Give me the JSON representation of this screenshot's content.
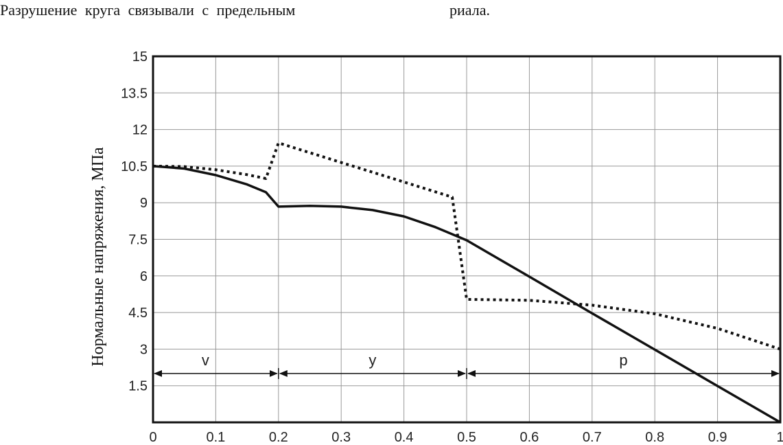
{
  "text": {
    "line1": "Разрушение круга связывали с предельным",
    "line2": "риала."
  },
  "chart_data": {
    "type": "line",
    "title": "",
    "xlabel": "",
    "ylabel": "Нормальные напряжения, МПа",
    "xlim": [
      0,
      1
    ],
    "ylim": [
      0,
      15
    ],
    "grid": true,
    "x_ticks": [
      "0",
      "0.1",
      "0.2",
      "0.3",
      "0.4",
      "0.5",
      "0.6",
      "0.7",
      "0.8",
      "0.9",
      "1"
    ],
    "y_ticks": [
      "1.5",
      "3",
      "4.5",
      "6",
      "7.5",
      "9",
      "10.5",
      "12",
      "13.5",
      "15"
    ],
    "series": [
      {
        "style": "solid",
        "color": "#111111",
        "x": [
          0,
          0.05,
          0.1,
          0.15,
          0.18,
          0.2,
          0.25,
          0.3,
          0.35,
          0.4,
          0.45,
          0.5,
          0.6,
          0.7,
          0.8,
          0.9,
          1.0
        ],
        "y": [
          10.5,
          10.4,
          10.13,
          9.75,
          9.43,
          8.84,
          8.87,
          8.84,
          8.7,
          8.44,
          8.0,
          7.46,
          5.97,
          4.47,
          2.98,
          1.49,
          0
        ]
      },
      {
        "style": "dotted",
        "color": "#111111",
        "x": [
          0,
          0.05,
          0.1,
          0.15,
          0.18,
          0.2,
          0.3,
          0.4,
          0.477,
          0.5,
          0.6,
          0.7,
          0.8,
          0.9,
          1.0
        ],
        "y": [
          10.5,
          10.48,
          10.35,
          10.15,
          9.99,
          11.45,
          10.65,
          9.85,
          9.23,
          5.04,
          5.0,
          4.8,
          4.45,
          3.85,
          3.0
        ]
      }
    ],
    "zones": [
      {
        "label": "v",
        "from": 0,
        "to": 0.2,
        "y": 2.0
      },
      {
        "label": "y",
        "from": 0.2,
        "to": 0.5,
        "y": 2.0
      },
      {
        "label": "p",
        "from": 0.5,
        "to": 1.0,
        "y": 2.0
      }
    ]
  }
}
